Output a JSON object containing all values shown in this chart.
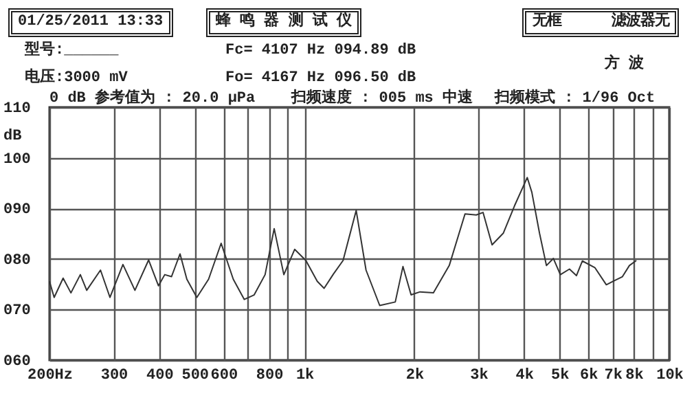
{
  "chart_data": {
    "type": "line",
    "title": "蜂 鸣 器 测 试 仪",
    "ylabel": "dB",
    "annotations": [
      "01/25/2011 13:33",
      "无框      滤波器无",
      "型号:______",
      "电压:3000 mV",
      "Fc= 4107 Hz 094.89 dB",
      "Fo= 4167 Hz 096.50 dB",
      "方 波",
      "0 dB 参考值为 : 20.0 μPa",
      "扫频速度 : 005 ms 中速",
      "扫频模式 : 1/96 Oct"
    ],
    "log": "x",
    "grid": true,
    "line_style": "solid",
    "marker": "none",
    "xlim": [
      200,
      10000
    ],
    "ylim": [
      60,
      110
    ],
    "xticks": [
      {
        "value": 200,
        "label": "200Hz"
      },
      300,
      400,
      500,
      600,
      {
        "value": 700,
        "label": null
      },
      800,
      {
        "value": 900,
        "label": null
      },
      {
        "value": 1000,
        "label": "1k"
      },
      {
        "value": 2000,
        "label": "2k"
      },
      {
        "value": 3000,
        "label": "3k"
      },
      {
        "value": 4000,
        "label": "4k"
      },
      {
        "value": 5000,
        "label": "5k"
      },
      {
        "value": 6000,
        "label": "6k"
      },
      {
        "value": 7000,
        "label": "7k"
      },
      {
        "value": 8000,
        "label": "8k"
      },
      {
        "value": 9000,
        "label": null
      },
      {
        "value": 10000,
        "label": "10k"
      }
    ],
    "yticks": [
      {
        "value": 60,
        "label": "060"
      },
      {
        "value": 70,
        "label": "070"
      },
      {
        "value": 80,
        "label": "080"
      },
      {
        "value": 90,
        "label": "090"
      },
      {
        "value": 100,
        "label": "100"
      },
      {
        "value": 110,
        "label": "110"
      }
    ],
    "x": [
      200,
      206,
      218,
      229,
      243,
      253,
      276,
      293,
      318,
      343,
      374,
      398,
      414,
      432,
      456,
      476,
      507,
      546,
      591,
      638,
      684,
      728,
      780,
      826,
      878,
      940,
      1009,
      1084,
      1132,
      1200,
      1276,
      1386,
      1475,
      1608,
      1774,
      1862,
      1960,
      2074,
      2257,
      2494,
      2755,
      2958,
      3087,
      3268,
      3508,
      3765,
      4080,
      4200,
      4409,
      4606,
      4813,
      5029,
      5327,
      5566,
      5779,
      6251,
      6722,
      7023,
      7441,
      7775,
      8124
    ],
    "series": [
      {
        "color": "#333333",
        "values": [
          75.6,
          72.4,
          76.2,
          73.3,
          76.9,
          73.8,
          77.8,
          72.4,
          78.9,
          73.8,
          79.8,
          74.7,
          76.9,
          76.5,
          81.0,
          76.0,
          72.4,
          76.0,
          83.1,
          76.0,
          72.0,
          72.9,
          76.9,
          86.0,
          76.9,
          81.9,
          79.7,
          75.6,
          74.2,
          77.0,
          79.7,
          89.6,
          77.8,
          70.8,
          71.5,
          78.5,
          72.9,
          73.5,
          73.3,
          78.7,
          88.9,
          88.7,
          89.2,
          82.8,
          85.1,
          90.5,
          96.1,
          93.2,
          85.1,
          78.7,
          80.1,
          76.9,
          78.0,
          76.7,
          79.6,
          78.3,
          74.9,
          75.6,
          76.5,
          78.7,
          79.7
        ]
      }
    ]
  }
}
